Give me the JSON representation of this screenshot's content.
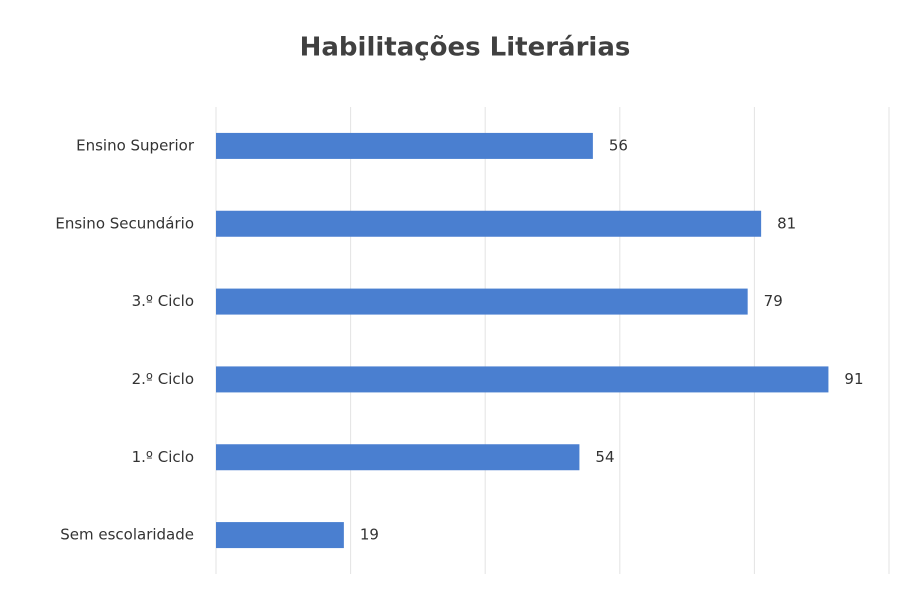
{
  "chart_data": {
    "type": "bar",
    "orientation": "horizontal",
    "title": "Habilitações Literárias",
    "categories": [
      "Ensino Superior",
      "Ensino Secundário",
      "3.º Ciclo",
      "2.º Ciclo",
      "1.º Ciclo",
      "Sem escolaridade"
    ],
    "values": [
      56,
      81,
      79,
      91,
      54,
      19
    ],
    "color": "#4a7fd0",
    "xlim": [
      0,
      100
    ],
    "xticks": [
      0,
      20,
      40,
      60,
      80,
      100
    ],
    "grid": true
  }
}
